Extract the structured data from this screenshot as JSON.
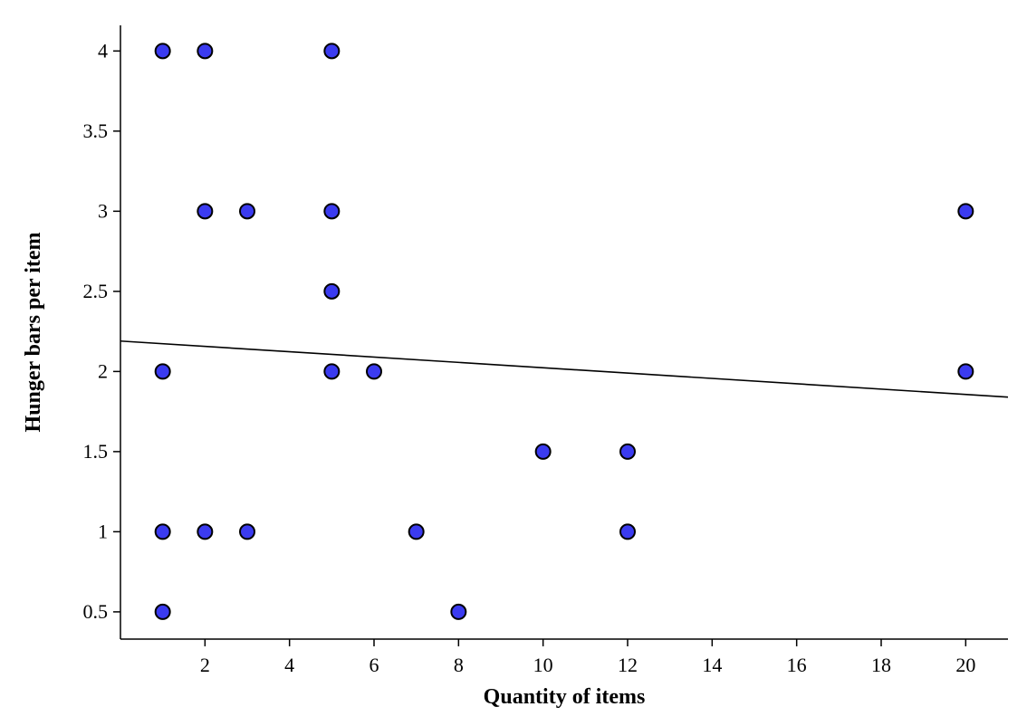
{
  "chart_data": {
    "type": "scatter",
    "xlabel": "Quantity of items",
    "ylabel": "Hunger bars per item",
    "xlim": [
      0,
      21
    ],
    "ylim": [
      0.33,
      4.16
    ],
    "xticks": [
      2,
      4,
      6,
      8,
      10,
      12,
      14,
      16,
      18,
      20
    ],
    "yticks": [
      0.5,
      1,
      1.5,
      2,
      2.5,
      3,
      3.5,
      4
    ],
    "grid": false,
    "legend": "none",
    "point_color": "#3b3bf0",
    "points": [
      {
        "x": 1,
        "y": 4
      },
      {
        "x": 2,
        "y": 4
      },
      {
        "x": 5,
        "y": 4
      },
      {
        "x": 2,
        "y": 3
      },
      {
        "x": 3,
        "y": 3
      },
      {
        "x": 5,
        "y": 3
      },
      {
        "x": 20,
        "y": 3
      },
      {
        "x": 5,
        "y": 2.5
      },
      {
        "x": 1,
        "y": 2
      },
      {
        "x": 5,
        "y": 2
      },
      {
        "x": 6,
        "y": 2
      },
      {
        "x": 20,
        "y": 2
      },
      {
        "x": 10,
        "y": 1.5
      },
      {
        "x": 12,
        "y": 1.5
      },
      {
        "x": 1,
        "y": 1
      },
      {
        "x": 2,
        "y": 1
      },
      {
        "x": 3,
        "y": 1
      },
      {
        "x": 7,
        "y": 1
      },
      {
        "x": 12,
        "y": 1
      },
      {
        "x": 1,
        "y": 0.5
      },
      {
        "x": 8,
        "y": 0.5
      }
    ],
    "trendline": {
      "x": [
        0,
        21
      ],
      "y": [
        2.19,
        1.84
      ]
    }
  }
}
